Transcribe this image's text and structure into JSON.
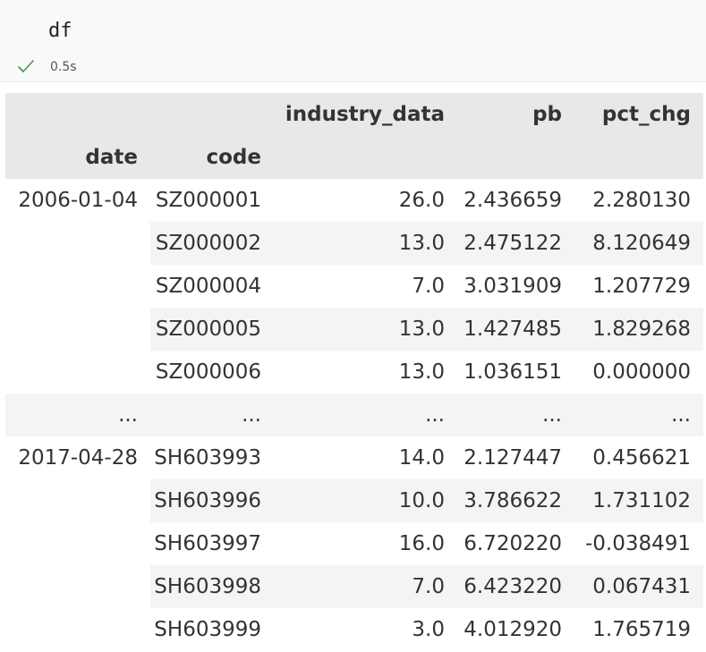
{
  "cell": {
    "code": "df",
    "status_icon": "check-icon",
    "status_color": "#3c9b47",
    "exec_time": "0.5s"
  },
  "dataframe": {
    "columns": [
      "industry_data",
      "pb",
      "pct_chg"
    ],
    "index_names": [
      "date",
      "code"
    ],
    "groups": [
      {
        "date": "2006-01-04",
        "rows": [
          {
            "code": "SZ000001",
            "industry_data": "26.0",
            "pb": "2.436659",
            "pct_chg": "2.280130"
          },
          {
            "code": "SZ000002",
            "industry_data": "13.0",
            "pb": "2.475122",
            "pct_chg": "8.120649"
          },
          {
            "code": "SZ000004",
            "industry_data": "7.0",
            "pb": "3.031909",
            "pct_chg": "1.207729"
          },
          {
            "code": "SZ000005",
            "industry_data": "13.0",
            "pb": "1.427485",
            "pct_chg": "1.829268"
          },
          {
            "code": "SZ000006",
            "industry_data": "13.0",
            "pb": "1.036151",
            "pct_chg": "0.000000"
          }
        ]
      },
      {
        "date": "2017-04-28",
        "rows": [
          {
            "code": "SH603993",
            "industry_data": "14.0",
            "pb": "2.127447",
            "pct_chg": "0.456621"
          },
          {
            "code": "SH603996",
            "industry_data": "10.0",
            "pb": "3.786622",
            "pct_chg": "1.731102"
          },
          {
            "code": "SH603997",
            "industry_data": "16.0",
            "pb": "6.720220",
            "pct_chg": "-0.038491"
          },
          {
            "code": "SH603998",
            "industry_data": "7.0",
            "pb": "6.423220",
            "pct_chg": "0.067431"
          },
          {
            "code": "SH603999",
            "industry_data": "3.0",
            "pb": "4.012920",
            "pct_chg": "1.765719"
          }
        ]
      }
    ],
    "ellipsis": "..."
  }
}
